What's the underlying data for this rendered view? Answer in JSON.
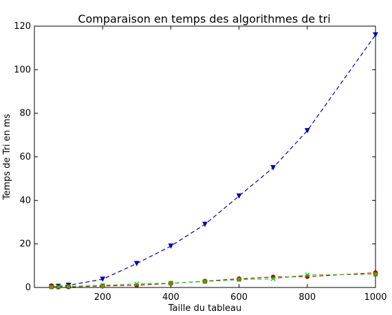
{
  "chart_data": {
    "type": "line",
    "title": "Comparaison en temps des algorithmes de tri",
    "xlabel": "Taille du tableau",
    "ylabel": "Temps de Tri en ms",
    "xlim": [
      0,
      1000
    ],
    "ylim": [
      0,
      120
    ],
    "xticks": [
      "200",
      "400",
      "600",
      "800",
      "1000"
    ],
    "yticks": [
      "0",
      "20",
      "40",
      "60",
      "80",
      "100",
      "120"
    ],
    "grid": false,
    "series": [
      {
        "color": "#0000aa",
        "marker": "triangle-down",
        "linestyle": "dashed",
        "x": [
          50,
          70,
          100,
          200,
          300,
          400,
          500,
          600,
          700,
          800,
          1000
        ],
        "y": [
          0.3,
          0.5,
          1,
          3.8,
          11,
          19,
          29,
          42,
          55,
          72,
          116
        ]
      },
      {
        "color": "#cc0000",
        "marker": "circle",
        "linestyle": "dashed",
        "x": [
          50,
          70,
          100,
          200,
          300,
          400,
          500,
          600,
          700,
          800,
          1000
        ],
        "y": [
          0.8,
          0.2,
          0.3,
          0.7,
          1.0,
          1.9,
          2.9,
          4.0,
          4.8,
          5.0,
          6.8
        ]
      },
      {
        "color": "#22cc22",
        "marker": "x",
        "linestyle": "dashed",
        "x": [
          50,
          70,
          100,
          200,
          300,
          400,
          500,
          600,
          700,
          800,
          1000
        ],
        "y": [
          0.2,
          0.3,
          0.5,
          1.0,
          1.6,
          2.0,
          2.7,
          3.6,
          4.0,
          5.8,
          6.0
        ]
      },
      {
        "color": "#888800",
        "marker": "circle",
        "linestyle": "none",
        "x": [
          50,
          100,
          200,
          400,
          500,
          600,
          1000
        ],
        "y": [
          0.3,
          0.4,
          0.6,
          1.9,
          2.8,
          3.8,
          6.2
        ]
      }
    ]
  }
}
